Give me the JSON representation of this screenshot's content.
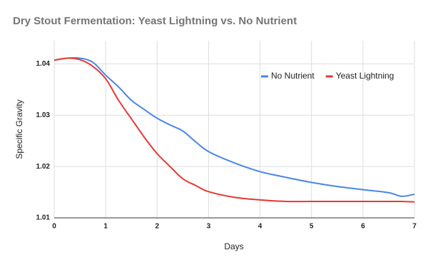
{
  "chart_data": {
    "type": "line",
    "title": "Dry Stout Fermentation: Yeast Lightning vs. No Nutrient",
    "x_label": "Days",
    "y_label": "Specific Gravity",
    "x": [
      0,
      0.25,
      0.5,
      0.75,
      1,
      1.25,
      1.5,
      1.75,
      2,
      2.25,
      2.5,
      2.75,
      3,
      3.5,
      4,
      4.5,
      5,
      5.5,
      6,
      6.5,
      6.75,
      7
    ],
    "series": [
      {
        "name": "No Nutrient",
        "color": "#4a86e8",
        "values": [
          1.0407,
          1.0411,
          1.0411,
          1.0403,
          1.0378,
          1.0355,
          1.0329,
          1.0311,
          1.0294,
          1.0281,
          1.0269,
          1.0248,
          1.0229,
          1.0207,
          1.019,
          1.0179,
          1.0169,
          1.0161,
          1.0155,
          1.0149,
          1.0142,
          1.0146
        ]
      },
      {
        "name": "Yeast Lightning",
        "color": "#e53935",
        "values": [
          1.0407,
          1.0411,
          1.0408,
          1.0395,
          1.0371,
          1.0329,
          1.0293,
          1.0257,
          1.0225,
          1.02,
          1.0176,
          1.0163,
          1.0151,
          1.014,
          1.0135,
          1.0132,
          1.0132,
          1.0132,
          1.0132,
          1.0132,
          1.0132,
          1.0131
        ]
      }
    ],
    "xlim": [
      0,
      7
    ],
    "xticks": [
      0,
      1,
      2,
      3,
      4,
      5,
      6,
      7
    ],
    "ylim": [
      1.01,
      1.0445
    ],
    "yticks": [
      1.01,
      1.02,
      1.03,
      1.04
    ],
    "grid": true,
    "legend": "right"
  }
}
